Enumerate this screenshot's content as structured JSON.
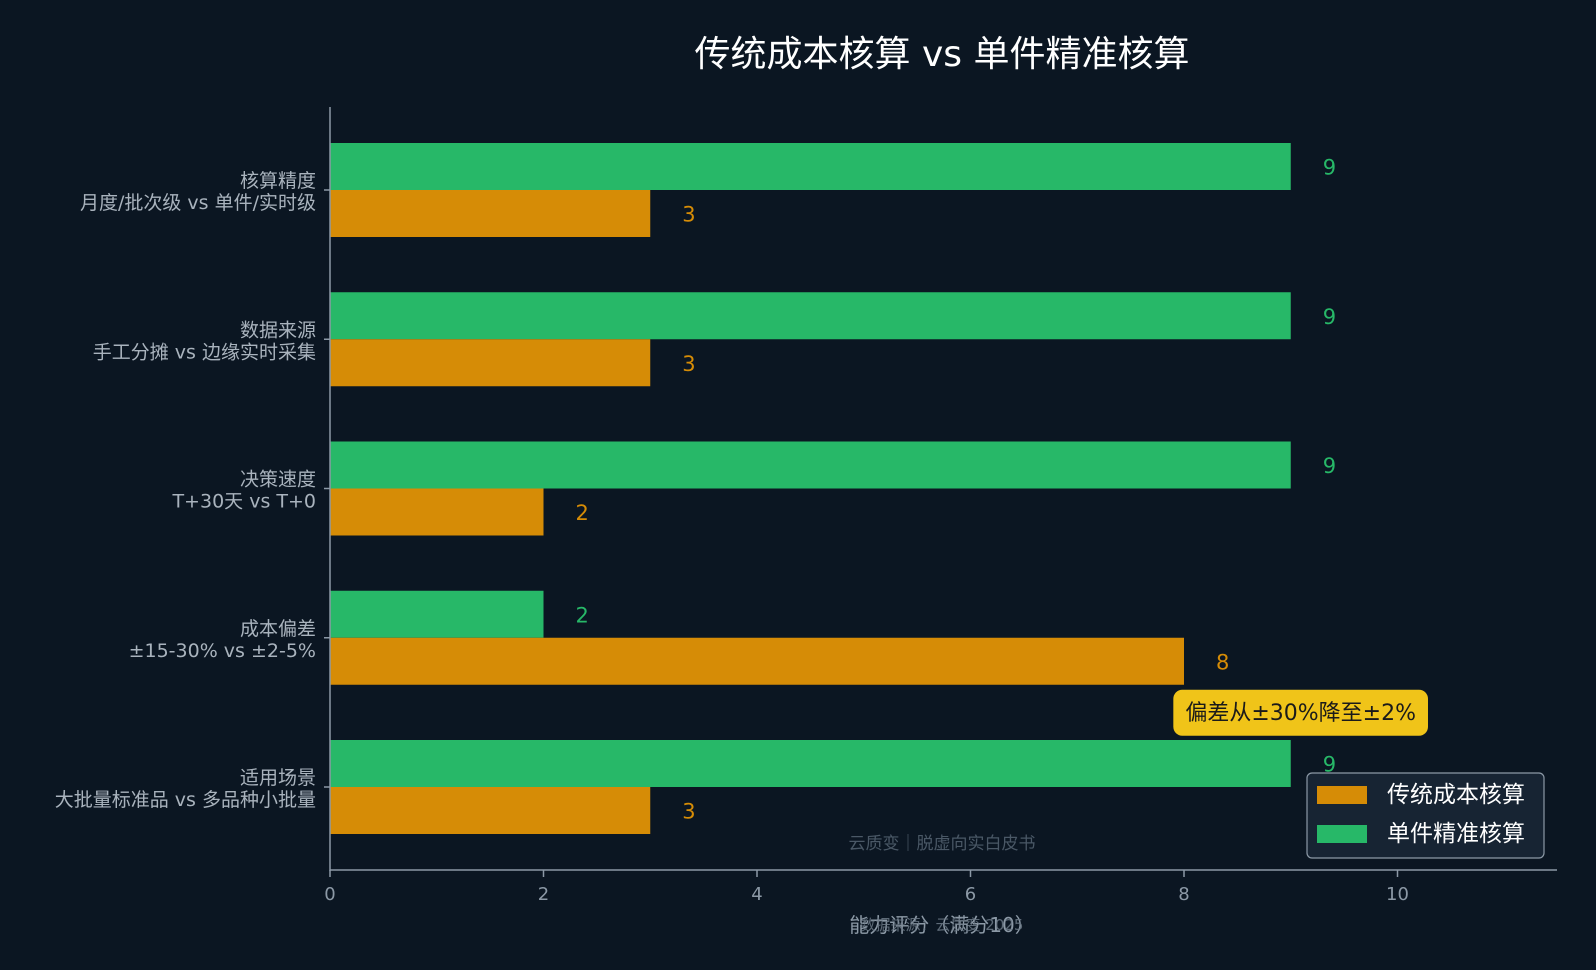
{
  "chart_data": {
    "type": "bar",
    "orientation": "horizontal",
    "title": "传统成本核算 vs 单件精准核算",
    "xlabel": "能力评分（满分10）",
    "ylabel": "",
    "xlim": [
      0,
      11.5
    ],
    "xticks": [
      0,
      2,
      4,
      6,
      8,
      10
    ],
    "grid": false,
    "legend_position": "bottom-right",
    "categories": [
      {
        "title": "核算精度",
        "subtitle": "月度/批次级 vs 单件/实时级"
      },
      {
        "title": "数据来源",
        "subtitle": "手工分摊 vs 边缘实时采集"
      },
      {
        "title": "决策速度",
        "subtitle": "T+30天 vs T+0"
      },
      {
        "title": "成本偏差",
        "subtitle": "±15-30% vs ±2-5%"
      },
      {
        "title": "适用场景",
        "subtitle": "大批量标准品 vs 多品种小批量"
      }
    ],
    "series": [
      {
        "name": "传统成本核算",
        "color": "#d68c06",
        "values": [
          3,
          3,
          2,
          8,
          3
        ]
      },
      {
        "name": "单件精准核算",
        "color": "#27b868",
        "values": [
          9,
          9,
          9,
          2,
          9
        ]
      }
    ],
    "annotation": {
      "text": "偏差从±30%降至±2%",
      "category_index": 3,
      "x": 7.9
    },
    "watermark": "云质变｜脱虚向实白皮书",
    "source_note": "数据来源：云质变 2025"
  },
  "colors": {
    "background": "#0b1622",
    "title": "#ffffff",
    "axis": "#8c99a6",
    "tick_label": "#8c99a6",
    "category_label": "#a9b3bd",
    "annotation_bg": "#f0c419",
    "annotation_text": "#1a1a1a",
    "legend_bg": "#172433",
    "legend_border": "#8c99a6",
    "legend_text": "#ffffff",
    "watermark": "#4a5866"
  }
}
